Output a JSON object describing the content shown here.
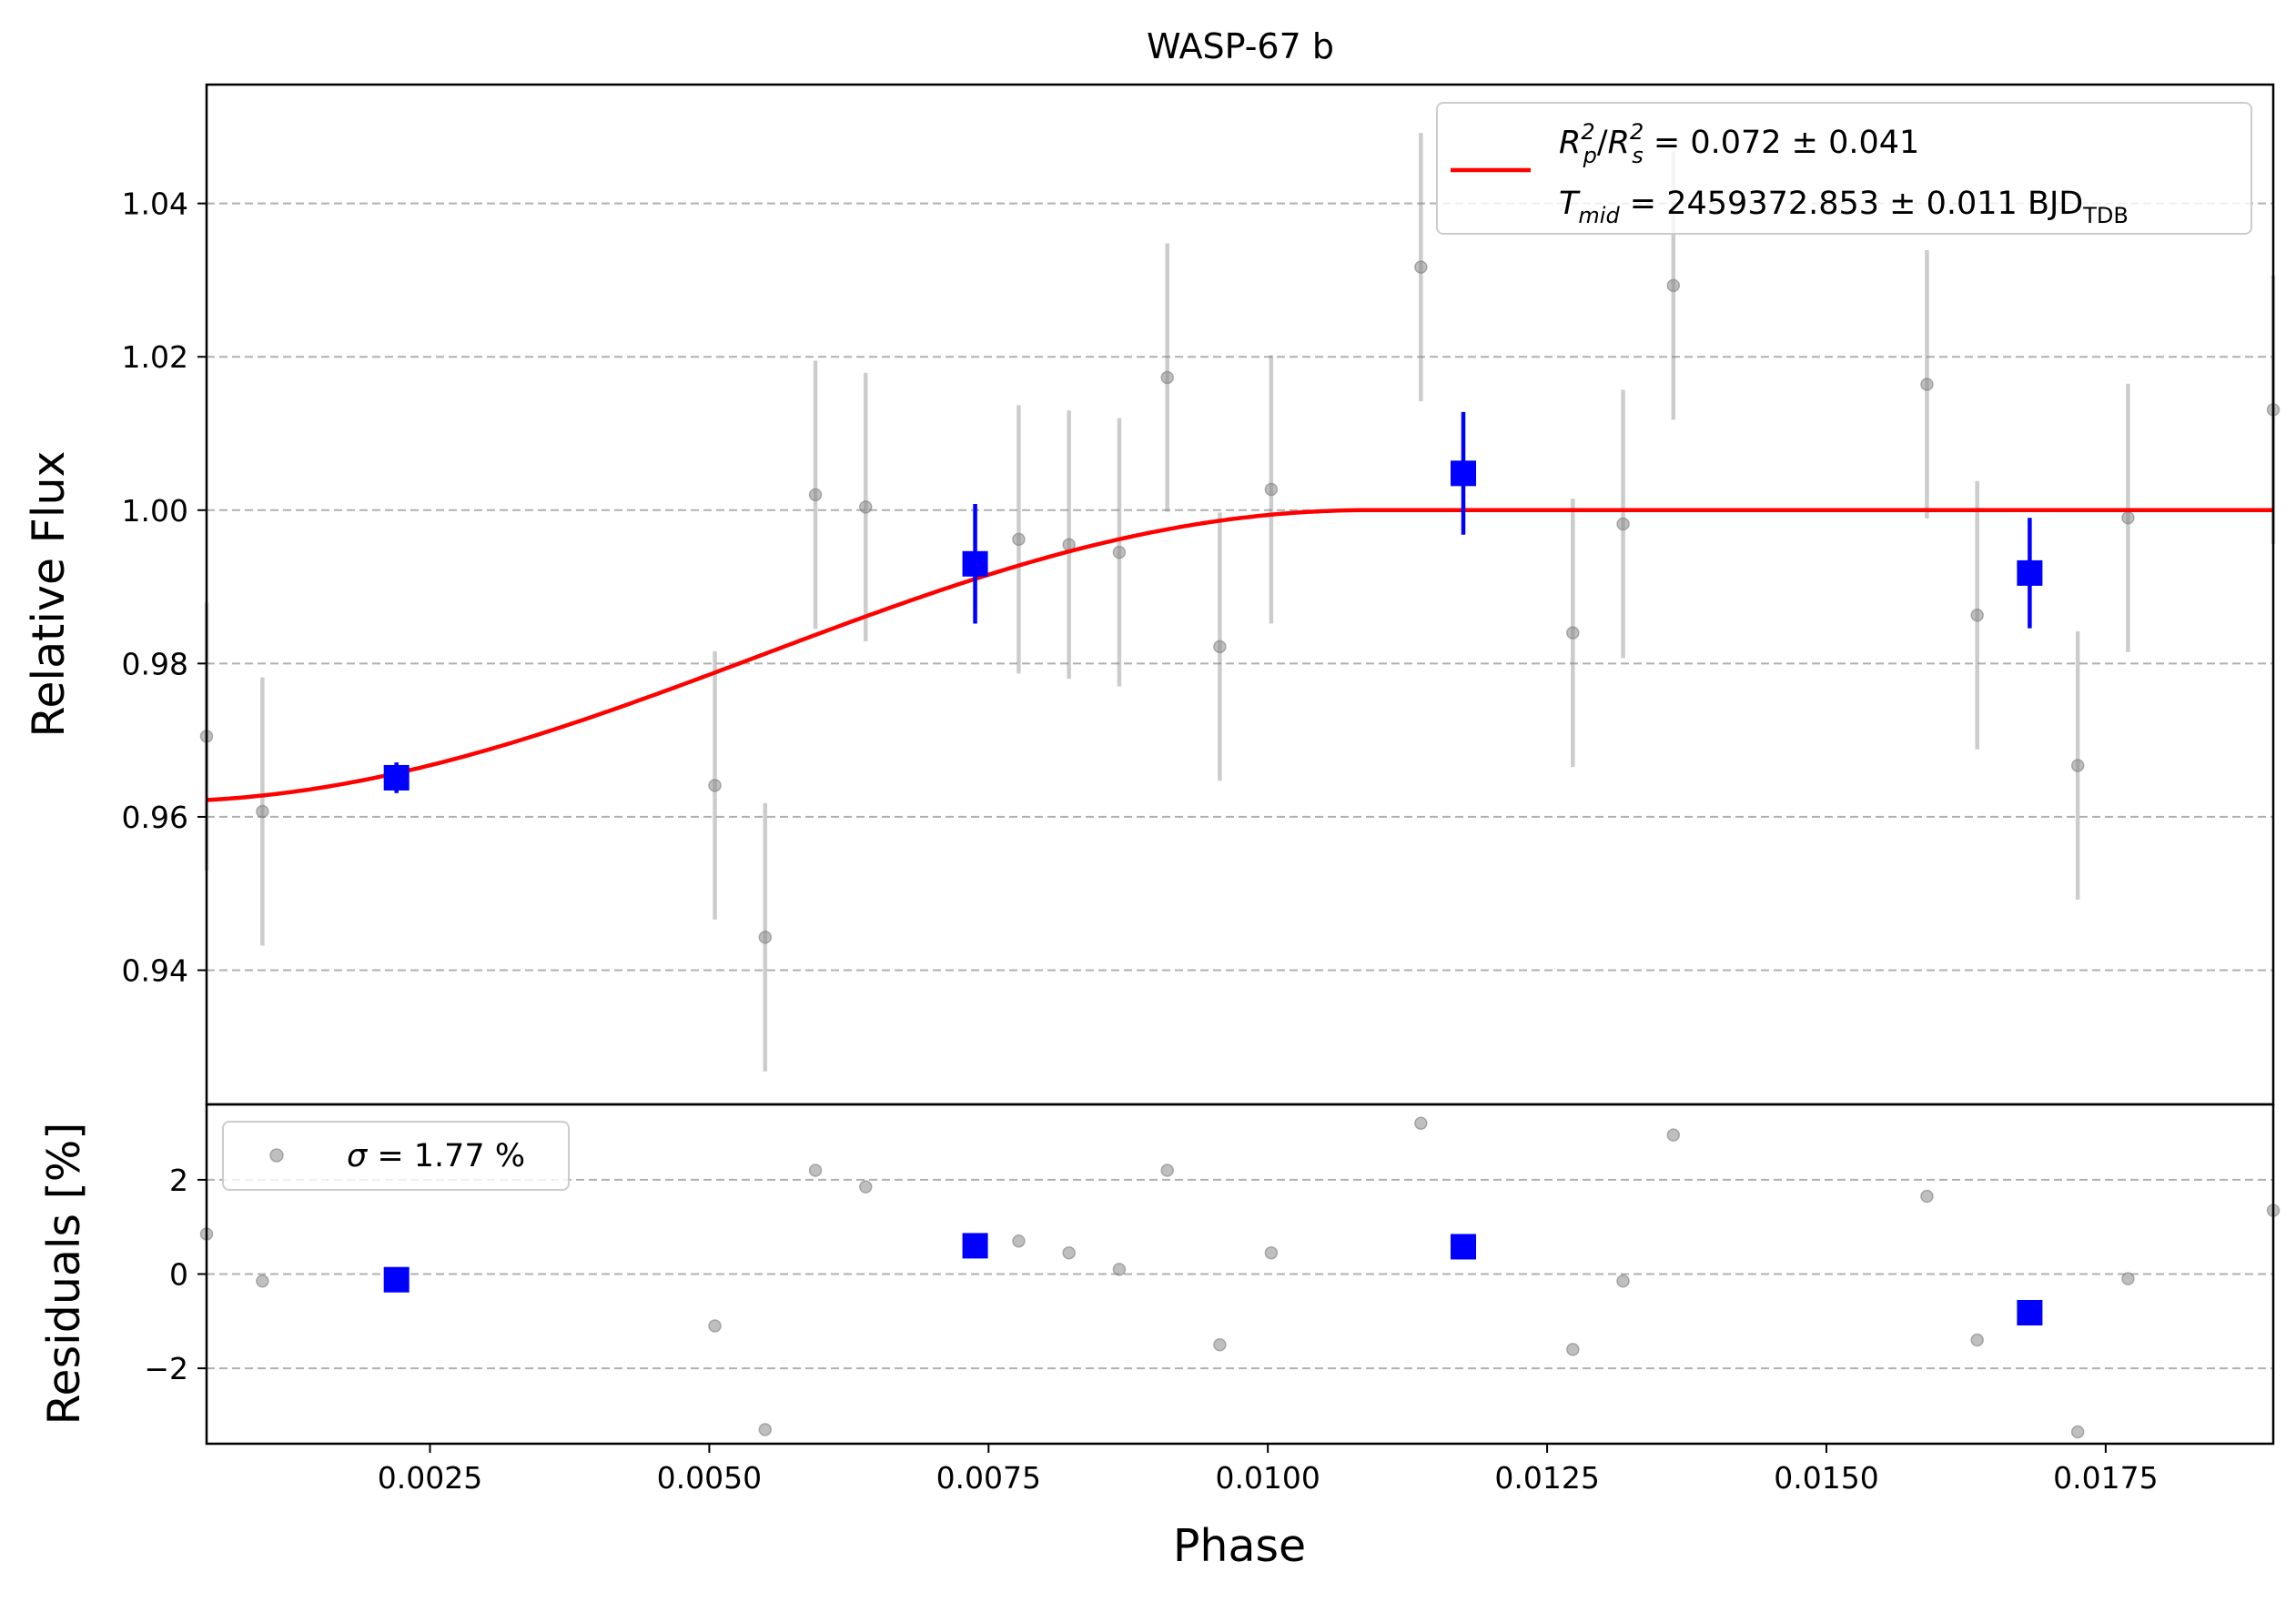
{
  "chart_data": [
    {
      "type": "scatter",
      "panel": "flux",
      "title": "WASP-67 b",
      "xlabel": "",
      "ylabel": "Relative Flux",
      "xlim": [
        0.0005,
        0.019
      ],
      "ylim": [
        0.9225,
        1.0555
      ],
      "grid": "y-dashed",
      "legend_position": "top-right",
      "yticks": [
        0.94,
        0.96,
        0.98,
        1.0,
        1.02,
        1.04
      ],
      "ytick_labels": [
        "0.94",
        "0.96",
        "0.98",
        "1.00",
        "1.02",
        "1.04"
      ],
      "legend": {
        "model_line": "R_p^2/R_s^2 = 0.072 ± 0.041",
        "tmid_line": "T_mid = 2459372.853 ± 0.011 BJD_TDB",
        "rp_main": "R",
        "rp_sub": "p",
        "rp_sup": "2",
        "rs_main": "R",
        "rs_sub": "s",
        "rs_sup": "2",
        "slash": "/",
        "rp_value": " = 0.072 ± 0.041",
        "tmid_main": "T",
        "tmid_sub": "mid",
        "tmid_value": " = 2459372.853 ± 0.011 BJD",
        "tmid_unit_sub": "TDB"
      },
      "series": [
        {
          "kind": "raw-points",
          "color": "#808080",
          "x": [
            0.0005,
            0.001,
            0.00505,
            0.0055,
            0.00595,
            0.0064,
            0.00777,
            0.00822,
            0.00867,
            0.0091,
            0.00957,
            0.01003,
            0.01137,
            0.01273,
            0.01318,
            0.01363,
            0.0159,
            0.01635,
            0.01725,
            0.0177,
            0.019
          ],
          "y": [
            0.9705,
            0.9607,
            0.9641,
            0.9443,
            1.002,
            1.0004,
            0.9962,
            0.9955,
            0.9945,
            1.0173,
            0.9822,
            1.0027,
            1.0317,
            0.984,
            0.9982,
            1.0293,
            1.0164,
            0.9863,
            0.9667,
            0.999,
            1.0131
          ],
          "yerr": [
            0.0175,
            0.0175,
            0.0175,
            0.0175,
            0.0175,
            0.0175,
            0.0175,
            0.0175,
            0.0175,
            0.0175,
            0.0175,
            0.0175,
            0.0175,
            0.0175,
            0.0175,
            0.0175,
            0.0175,
            0.0175,
            0.0175,
            0.0175,
            0.0175
          ]
        },
        {
          "kind": "binned-points",
          "color": "#0000ff",
          "x": [
            0.0022,
            0.00738,
            0.01175,
            0.01682
          ],
          "y": [
            0.9651,
            0.993,
            1.0048,
            0.9918
          ],
          "yerr": [
            0.002,
            0.0078,
            0.008,
            0.0072
          ]
        },
        {
          "kind": "model",
          "color": "#ff0000",
          "depth": 0.038,
          "ingress_end": 0.0,
          "egress_end": 0.0109
        }
      ]
    },
    {
      "type": "scatter",
      "panel": "residuals",
      "xlabel": "Phase",
      "ylabel": "Residuals [%]",
      "xlim": [
        0.0005,
        0.019
      ],
      "ylim": [
        -3.6,
        3.6
      ],
      "grid": "y-dashed",
      "legend_position": "top-left",
      "legend_label": "σ = 1.77 %",
      "legend_sigma": "σ",
      "legend_value": " = 1.77 %",
      "yticks": [
        -2,
        0,
        2
      ],
      "ytick_labels": [
        "−2",
        "0",
        "2"
      ],
      "xticks": [
        0.0025,
        0.005,
        0.0075,
        0.01,
        0.0125,
        0.015,
        0.0175
      ],
      "xtick_labels": [
        "0.0025",
        "0.0050",
        "0.0075",
        "0.0100",
        "0.0125",
        "0.0150",
        "0.0175"
      ],
      "series": [
        {
          "kind": "raw-residuals",
          "color": "#808080",
          "x": [
            0.0005,
            0.001,
            0.00505,
            0.0055,
            0.00595,
            0.0064,
            0.00777,
            0.00822,
            0.00867,
            0.0091,
            0.00957,
            0.01003,
            0.01137,
            0.01273,
            0.01318,
            0.01363,
            0.0159,
            0.01635,
            0.01725,
            0.0177,
            0.019
          ],
          "y": [
            0.85,
            -0.15,
            -1.1,
            -3.3,
            2.2,
            1.85,
            0.7,
            0.45,
            0.1,
            2.2,
            -1.5,
            0.45,
            3.2,
            -1.6,
            -0.15,
            2.95,
            1.65,
            -1.4,
            -3.35,
            -0.1,
            1.35
          ]
        },
        {
          "kind": "binned-residuals",
          "color": "#0000ff",
          "x": [
            0.0022,
            0.00738,
            0.01175,
            0.01682
          ],
          "y": [
            -0.12,
            0.6,
            0.58,
            -0.82
          ]
        }
      ]
    }
  ]
}
